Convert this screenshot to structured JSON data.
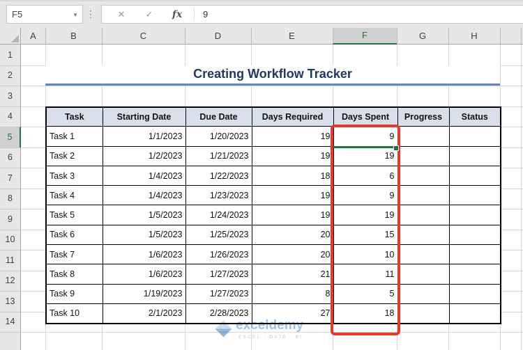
{
  "formula_bar": {
    "cell_reference": "F5",
    "value": "9",
    "cancel_icon": "✕",
    "enter_icon": "✓",
    "function_icon": "fx"
  },
  "grid": {
    "column_letters": [
      "A",
      "B",
      "C",
      "D",
      "E",
      "F",
      "G",
      "H"
    ],
    "row_numbers": [
      "1",
      "2",
      "3",
      "4",
      "5",
      "6",
      "7",
      "8",
      "9",
      "10",
      "11",
      "12",
      "13",
      "14"
    ],
    "selected_column": "F",
    "selected_row": "5"
  },
  "worksheet": {
    "title": "Creating Workflow Tracker",
    "table": {
      "headers": [
        "Task",
        "Starting Date",
        "Due Date",
        "Days Required",
        "Days Spent",
        "Progress",
        "Status"
      ],
      "rows": [
        {
          "task": "Task 1",
          "starting_date": "1/1/2023",
          "due_date": "1/20/2023",
          "days_required": "19",
          "days_spent": "9",
          "progress": "",
          "status": ""
        },
        {
          "task": "Task 2",
          "starting_date": "1/2/2023",
          "due_date": "1/21/2023",
          "days_required": "19",
          "days_spent": "19",
          "progress": "",
          "status": ""
        },
        {
          "task": "Task 3",
          "starting_date": "1/4/2023",
          "due_date": "1/22/2023",
          "days_required": "18",
          "days_spent": "6",
          "progress": "",
          "status": ""
        },
        {
          "task": "Task 4",
          "starting_date": "1/4/2023",
          "due_date": "1/23/2023",
          "days_required": "19",
          "days_spent": "9",
          "progress": "",
          "status": ""
        },
        {
          "task": "Task 5",
          "starting_date": "1/5/2023",
          "due_date": "1/24/2023",
          "days_required": "19",
          "days_spent": "19",
          "progress": "",
          "status": ""
        },
        {
          "task": "Task 6",
          "starting_date": "1/5/2023",
          "due_date": "1/25/2023",
          "days_required": "20",
          "days_spent": "15",
          "progress": "",
          "status": ""
        },
        {
          "task": "Task 7",
          "starting_date": "1/6/2023",
          "due_date": "1/26/2023",
          "days_required": "20",
          "days_spent": "10",
          "progress": "",
          "status": ""
        },
        {
          "task": "Task 8",
          "starting_date": "1/6/2023",
          "due_date": "1/27/2023",
          "days_required": "21",
          "days_spent": "11",
          "progress": "",
          "status": ""
        },
        {
          "task": "Task 9",
          "starting_date": "1/19/2023",
          "due_date": "1/27/2023",
          "days_required": "8",
          "days_spent": "5",
          "progress": "",
          "status": ""
        },
        {
          "task": "Task 10",
          "starting_date": "2/1/2023",
          "due_date": "2/28/2023",
          "days_required": "27",
          "days_spent": "18",
          "progress": "",
          "status": ""
        }
      ]
    },
    "watermark": {
      "brand": "exceldemy",
      "tagline": "EXCEL - DATA - BI"
    }
  },
  "colors": {
    "selection_green": "#217346",
    "highlight_red": "#E8372C",
    "title_text": "#1F3864",
    "title_underline": "#6286C5",
    "table_header_fill": "#D9E0EB",
    "watermark_blue": "#9DC3E6"
  }
}
